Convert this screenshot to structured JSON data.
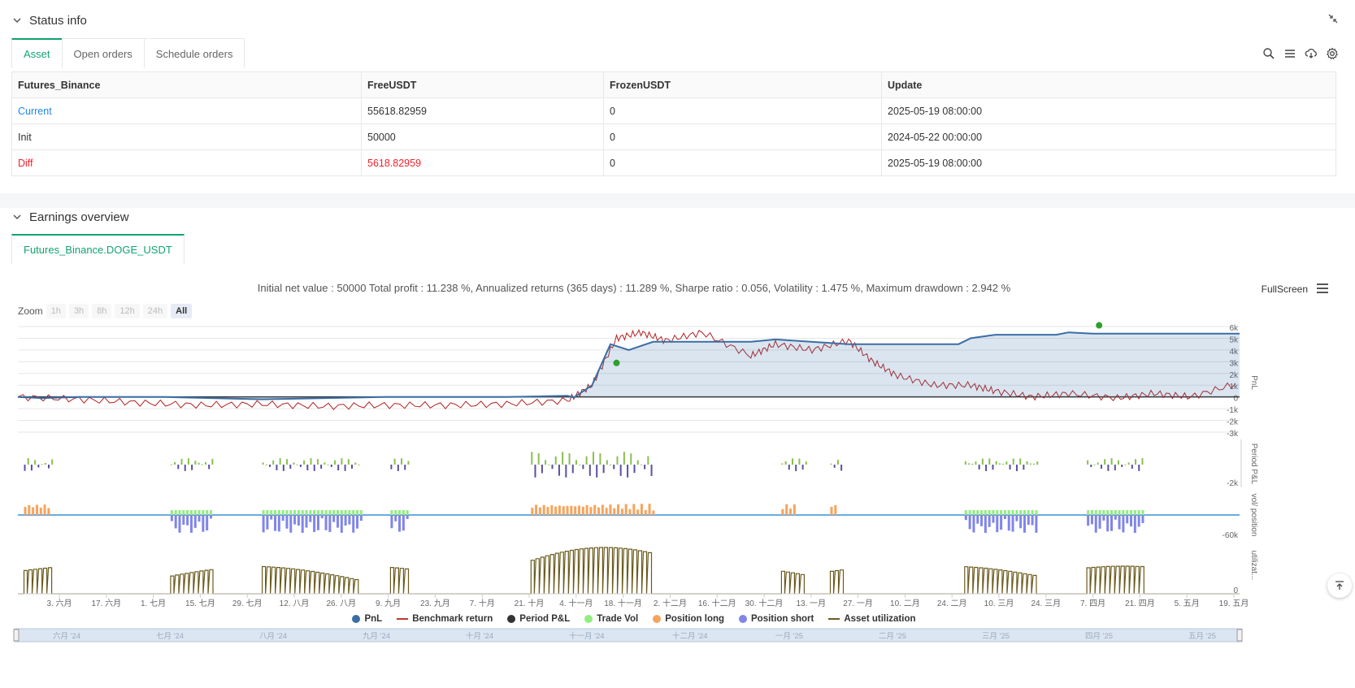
{
  "status_panel": {
    "title": "Status info",
    "tabs": [
      "Asset",
      "Open orders",
      "Schedule orders"
    ],
    "table": {
      "headers": [
        "Futures_Binance",
        "FreeUSDT",
        "FrozenUSDT",
        "Update"
      ],
      "rows": [
        [
          "Current",
          "55618.82959",
          "0",
          "2025-05-19 08:00:00"
        ],
        [
          "Init",
          "50000",
          "0",
          "2024-05-22 00:00:00"
        ],
        [
          "Diff",
          "5618.82959",
          "0",
          "2025-05-19 08:00:00"
        ]
      ]
    }
  },
  "earnings_panel": {
    "title": "Earnings overview",
    "tab": "Futures_Binance.DOGE_USDT",
    "stats_line": "Initial net value : 50000 Total profit : 11.238 %, Annualized returns (365 days) : 11.289 %, Sharpe ratio : 0.056, Volatility : 1.475 %, Maximum drawdown : 2.942 %",
    "fullscreen_label": "FullScreen",
    "zoom": {
      "label": "Zoom",
      "options": [
        "1h",
        "3h",
        "8h",
        "12h",
        "24h",
        "All"
      ],
      "active": "All"
    },
    "legend": [
      {
        "label": "PnL",
        "color": "#3a6ea5",
        "kind": "dot"
      },
      {
        "label": "Benchmark return",
        "color": "#c0392b",
        "kind": "line"
      },
      {
        "label": "Period P&L",
        "color": "#333333",
        "kind": "dot"
      },
      {
        "label": "Trade Vol",
        "color": "#90ee7e",
        "kind": "dot"
      },
      {
        "label": "Position long",
        "color": "#f7a35c",
        "kind": "dot"
      },
      {
        "label": "Position short",
        "color": "#8085e9",
        "kind": "dot"
      },
      {
        "label": "Asset utilization",
        "color": "#6b5b1e",
        "kind": "line"
      }
    ]
  },
  "chart_data": {
    "type": "line",
    "x_ticks": [
      "3. 六月",
      "17. 六月",
      "1. 七月",
      "15. 七月",
      "29. 七月",
      "12. 八月",
      "26. 八月",
      "9. 九月",
      "23. 九月",
      "7. 十月",
      "21. 十月",
      "4. 十一月",
      "18. 十一月",
      "2. 十二月",
      "16. 十二月",
      "30. 十二月",
      "13. 一月",
      "27. 一月",
      "10. 二月",
      "24. 二月",
      "10. 三月",
      "24. 三月",
      "7. 四月",
      "21. 四月",
      "5. 五月",
      "19. 五月"
    ],
    "navigator_labels": [
      "六月 '24",
      "七月 '24",
      "八月 '24",
      "九月 '24",
      "十月 '24",
      "十一月 '24",
      "十二月 '24",
      "一月 '25",
      "二月 '25",
      "三月 '25",
      "四月 '25",
      "五月 '25"
    ],
    "panes": [
      {
        "axis_title": "PnL",
        "y_ticks": [
          "6k",
          "5k",
          "4k",
          "3k",
          "2k",
          "1k",
          "0",
          "-1k",
          "-2k",
          "-3k"
        ],
        "ylim": [
          -3000,
          6000
        ]
      },
      {
        "axis_title": "Period P&L",
        "y_ticks": [
          "-2k"
        ]
      },
      {
        "axis_title": "vol/ position",
        "y_ticks": [
          "-60k"
        ]
      },
      {
        "axis_title": "utilizat...",
        "y_ticks": [
          "0"
        ]
      }
    ],
    "series": [
      {
        "name": "PnL",
        "x": [
          0,
          0.02,
          0.05,
          0.12,
          0.2,
          0.3,
          0.4,
          0.45,
          0.455,
          0.47,
          0.485,
          0.5,
          0.52,
          0.6,
          0.62,
          0.68,
          0.73,
          0.77,
          0.78,
          0.8,
          0.85,
          0.86,
          0.88,
          0.9,
          1.0
        ],
        "y": [
          0,
          -100,
          0,
          0,
          -200,
          0,
          0,
          100,
          -50,
          1000,
          4500,
          4000,
          4700,
          4700,
          4900,
          4500,
          4500,
          4500,
          5000,
          5300,
          5300,
          5500,
          5400,
          5400,
          5400
        ]
      },
      {
        "name": "Benchmark return",
        "x": [
          0,
          0.05,
          0.1,
          0.15,
          0.2,
          0.25,
          0.3,
          0.35,
          0.4,
          0.45,
          0.47,
          0.49,
          0.51,
          0.53,
          0.56,
          0.6,
          0.62,
          0.65,
          0.68,
          0.7,
          0.72,
          0.75,
          0.78,
          0.8,
          0.83,
          0.86,
          0.9,
          0.93,
          0.96,
          1.0
        ],
        "y": [
          0,
          -200,
          -500,
          -700,
          -600,
          -800,
          -700,
          -700,
          -600,
          -300,
          1000,
          5000,
          5500,
          4800,
          5500,
          3500,
          4500,
          4000,
          4800,
          3000,
          1800,
          1000,
          1000,
          500,
          0,
          300,
          -100,
          300,
          0,
          1200
        ]
      }
    ]
  }
}
